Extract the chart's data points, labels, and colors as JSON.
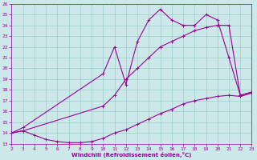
{
  "xlabel": "Windchill (Refroidissement éolien,°C)",
  "bg_color": "#cce8e8",
  "grid_color": "#99cccc",
  "line_color": "#990099",
  "xlim": [
    2,
    23
  ],
  "ylim": [
    13,
    26
  ],
  "xticks": [
    2,
    3,
    4,
    5,
    6,
    7,
    8,
    9,
    10,
    11,
    12,
    13,
    14,
    15,
    16,
    17,
    18,
    19,
    20,
    21,
    22,
    23
  ],
  "yticks": [
    13,
    14,
    15,
    16,
    17,
    18,
    19,
    20,
    21,
    22,
    23,
    24,
    25,
    26
  ],
  "line1_x": [
    2,
    3,
    10,
    11,
    12,
    13,
    14,
    15,
    16,
    17,
    18,
    19,
    20,
    21,
    22,
    23
  ],
  "line1_y": [
    14,
    14.5,
    19.5,
    22,
    18.5,
    22.5,
    24.5,
    25.5,
    24.5,
    24,
    24,
    25,
    24.5,
    21,
    17.5,
    17.8
  ],
  "line2_x": [
    2,
    3,
    10,
    11,
    12,
    13,
    14,
    15,
    16,
    17,
    18,
    19,
    20,
    21,
    22,
    23
  ],
  "line2_y": [
    14,
    14.2,
    16.5,
    17.5,
    19,
    20,
    21,
    22,
    22.5,
    23,
    23.5,
    23.8,
    24,
    24,
    17.5,
    17.8
  ],
  "line3_x": [
    2,
    3,
    4,
    5,
    6,
    7,
    8,
    9,
    10,
    11,
    12,
    13,
    14,
    15,
    16,
    17,
    18,
    19,
    20,
    21,
    22,
    23
  ],
  "line3_y": [
    14,
    14.2,
    13.8,
    13.4,
    13.2,
    13.1,
    13.1,
    13.2,
    13.5,
    14,
    14.3,
    14.8,
    15.3,
    15.8,
    16.2,
    16.7,
    17.0,
    17.2,
    17.4,
    17.5,
    17.4,
    17.7
  ]
}
